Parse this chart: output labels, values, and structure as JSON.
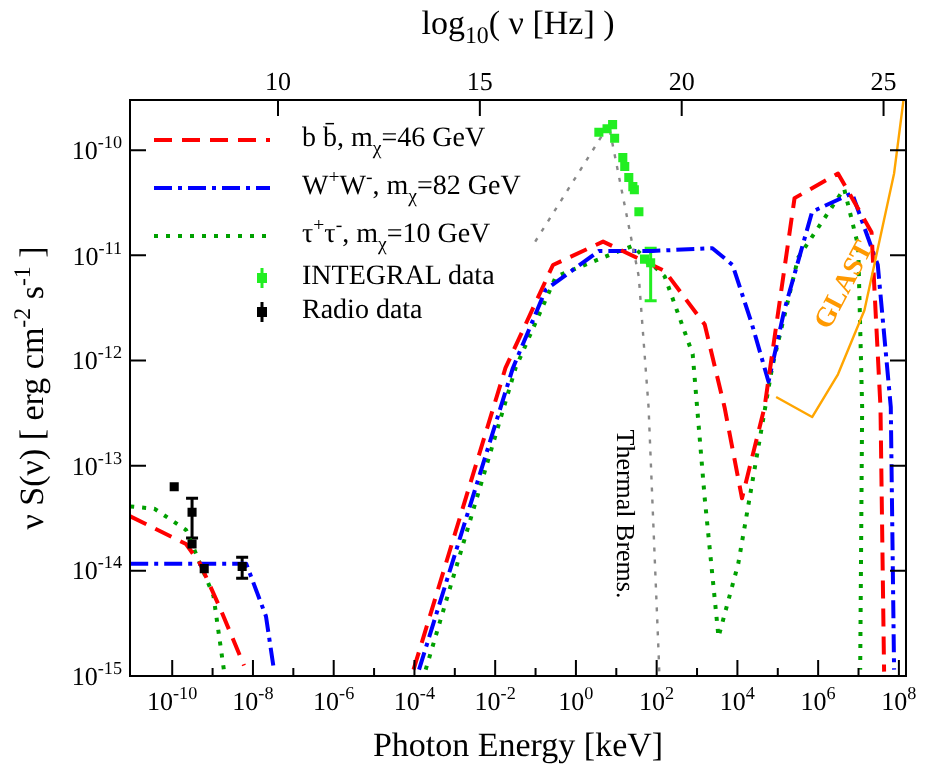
{
  "chart_data": {
    "type": "line",
    "x2label": "log$_{10}$( ν [Hz] )",
    "xlabel": "Photon Energy [keV]",
    "ylabel": "ν S(ν)  [ erg cm$^{-2}$ s$^{-1}$ ]",
    "log": "xy",
    "grid": false,
    "legend": "top left",
    "xlim": [
      9e-12,
      150000000.0
    ],
    "ylim": [
      1e-15,
      3e-10
    ],
    "x2lim": [
      6.334,
      25.556
    ],
    "xticks": [
      {
        "value": 1e-10,
        "label": "10$^{-10}$"
      },
      {
        "value": 1e-09,
        "label": null
      },
      {
        "value": 1e-08,
        "label": "10$^{-8}$"
      },
      {
        "value": 1e-07,
        "label": null
      },
      {
        "value": 1e-06,
        "label": "10$^{-6}$"
      },
      {
        "value": 1e-05,
        "label": null
      },
      {
        "value": 0.0001,
        "label": "10$^{-4}$"
      },
      {
        "value": 0.001,
        "label": null
      },
      {
        "value": 0.01,
        "label": "10$^{-2}$"
      },
      {
        "value": 0.1,
        "label": null
      },
      {
        "value": 1,
        "label": "10$^{0}$"
      },
      {
        "value": 10,
        "label": null
      },
      {
        "value": 100,
        "label": "10$^{2}$"
      },
      {
        "value": 1000,
        "label": null
      },
      {
        "value": 10000.0,
        "label": "10$^{4}$"
      },
      {
        "value": 100000.0,
        "label": null
      },
      {
        "value": 1000000.0,
        "label": "10$^{6}$"
      },
      {
        "value": 10000000.0,
        "label": null
      },
      {
        "value": 100000000.0,
        "label": "10$^{8}$"
      }
    ],
    "yticks": [
      {
        "value": 1e-15,
        "label": "10$^{-15}$"
      },
      {
        "value": 1e-14,
        "label": "10$^{-14}$"
      },
      {
        "value": 1e-13,
        "label": "10$^{-13}$"
      },
      {
        "value": 1e-12,
        "label": "10$^{-12}$"
      },
      {
        "value": 1e-11,
        "label": "10$^{-11}$"
      },
      {
        "value": 1e-10,
        "label": "10$^{-10}$"
      }
    ],
    "x2ticks": [
      10,
      15,
      20,
      25
    ],
    "series": [
      {
        "color": "#888888",
        "line_style": "dotted",
        "marker": "none",
        "x": [
          0.098,
          6.5,
          36,
          63,
          112,
          117
        ],
        "values": [
          1.35e-11,
          1.74e-10,
          6.3e-12,
          3.6e-13,
          1.6e-15,
          1e-15
        ]
      },
      {
        "color": "#ffa500",
        "line_style": "solid",
        "marker": "none",
        "x": [
          91000,
          710000,
          3100000,
          14000000,
          76000000,
          130000000
        ],
        "values": [
          4.5e-13,
          2.9e-13,
          7.4e-13,
          3e-12,
          6e-11,
          3e-10
        ]
      },
      {
        "name": "b b̄, m$_{χ}$=46 GeV",
        "color": "#ff0000",
        "line_style": "dashed",
        "marker": "none",
        "x": [
          9.1e-12,
          2.2e-10,
          4.9e-10,
          1.5e-09,
          6e-09,
          1e-06,
          9.5e-05,
          0.018,
          0.27,
          4.7,
          158,
          1550,
          4800,
          13000,
          47000,
          260000,
          3100000,
          21000000,
          35000000,
          43000000
        ],
        "values": [
          3.3e-14,
          1.8e-14,
          1.17e-14,
          4.5e-15,
          1.26e-15,
          null,
          1.15e-15,
          8.5e-13,
          8.1e-12,
          1.35e-11,
          7.1e-12,
          2.2e-12,
          3.6e-13,
          4.9e-14,
          3.6e-13,
          3.5e-11,
          6e-11,
          1.66e-11,
          3.6e-13,
          1.1e-15
        ]
      },
      {
        "name": "W$^{+}$W$^{-}$, m$_{χ}$=82 GeV",
        "color": "#0000ff",
        "line_style": "dashdot",
        "marker": "none",
        "x": [
          9.1e-12,
          6.8e-09,
          2.1e-08,
          3.3e-08,
          1e-06,
          0.00013,
          0.0275,
          0.178,
          3.7,
          79,
          2400,
          7600,
          23000,
          59000,
          145000,
          710000,
          6900000,
          30000000,
          63000000,
          76000000
        ],
        "values": [
          1.17e-14,
          1.17e-14,
          3.7e-15,
          1.15e-15,
          null,
          1.15e-15,
          8.5e-13,
          4.7e-12,
          1.1e-11,
          1.1e-11,
          1.17e-11,
          8.1e-12,
          2.2e-12,
          6.3e-13,
          3e-12,
          2.6e-11,
          3.9e-11,
          8.1e-12,
          3.6e-13,
          1.15e-15
        ]
      },
      {
        "name": "τ$^{+}$τ$^{-}$, m$_{χ}$=10 GeV",
        "color": "#00a000",
        "line_style": "dotted",
        "marker": "none",
        "x": [
          9.1e-12,
          3.6e-11,
          2.2e-10,
          4.9e-10,
          1.05e-09,
          1.9e-09,
          1e-06,
          0.00019,
          0.032,
          0.32,
          25,
          158,
          780,
          1550,
          3400,
          10500,
          72000,
          320000,
          4400000,
          9800000,
          12300000,
          11000000
        ],
        "values": [
          4.1e-14,
          3.9e-14,
          2.45e-14,
          1.17e-14,
          5.8e-15,
          1.15e-15,
          null,
          1.15e-15,
          8.5e-13,
          6.3e-12,
          1.23e-11,
          6.3e-12,
          1.15e-12,
          4.9e-14,
          2.35e-15,
          1.17e-14,
          8.5e-13,
          9.5e-12,
          4.3e-11,
          1.23e-11,
          3.6e-13,
          1.15e-15
        ]
      },
      {
        "name": "INTEGRAL data",
        "type": "scatter",
        "color": "#22ee22",
        "marker": "square",
        "x": [
          3.7,
          5.9,
          8.1,
          9.1,
          14.5,
          16.2,
          20.4,
          25.7,
          28,
          36.3,
          50,
          71
        ],
        "values": [
          1.48e-10,
          1.6e-10,
          1.75e-10,
          1.3e-10,
          8.5e-11,
          7e-11,
          5.5e-11,
          4.5e-11,
          4.2e-11,
          2.6e-11,
          9.2e-12,
          8.5e-12
        ],
        "errors": [
          null,
          null,
          null,
          null,
          null,
          null,
          null,
          null,
          null,
          null,
          null,
          [
            3.7e-12,
            1.17e-11
          ]
        ]
      },
      {
        "name": "Radio data",
        "type": "scatter",
        "color": "#000000",
        "marker": "square",
        "x": [
          1.12e-10,
          3.1e-10,
          3.1e-10,
          6.2e-10,
          5.4e-09
        ],
        "values": [
          6.3e-14,
          3.6e-14,
          1.8e-14,
          1.05e-14,
          1.1e-14
        ],
        "errors": [
          null,
          [
            2.05e-14,
            4.9e-14
          ],
          null,
          null,
          [
            8.5e-15,
            1.35e-14
          ]
        ]
      }
    ],
    "annotations": [
      "GLAST",
      "Thermal Brems."
    ]
  }
}
